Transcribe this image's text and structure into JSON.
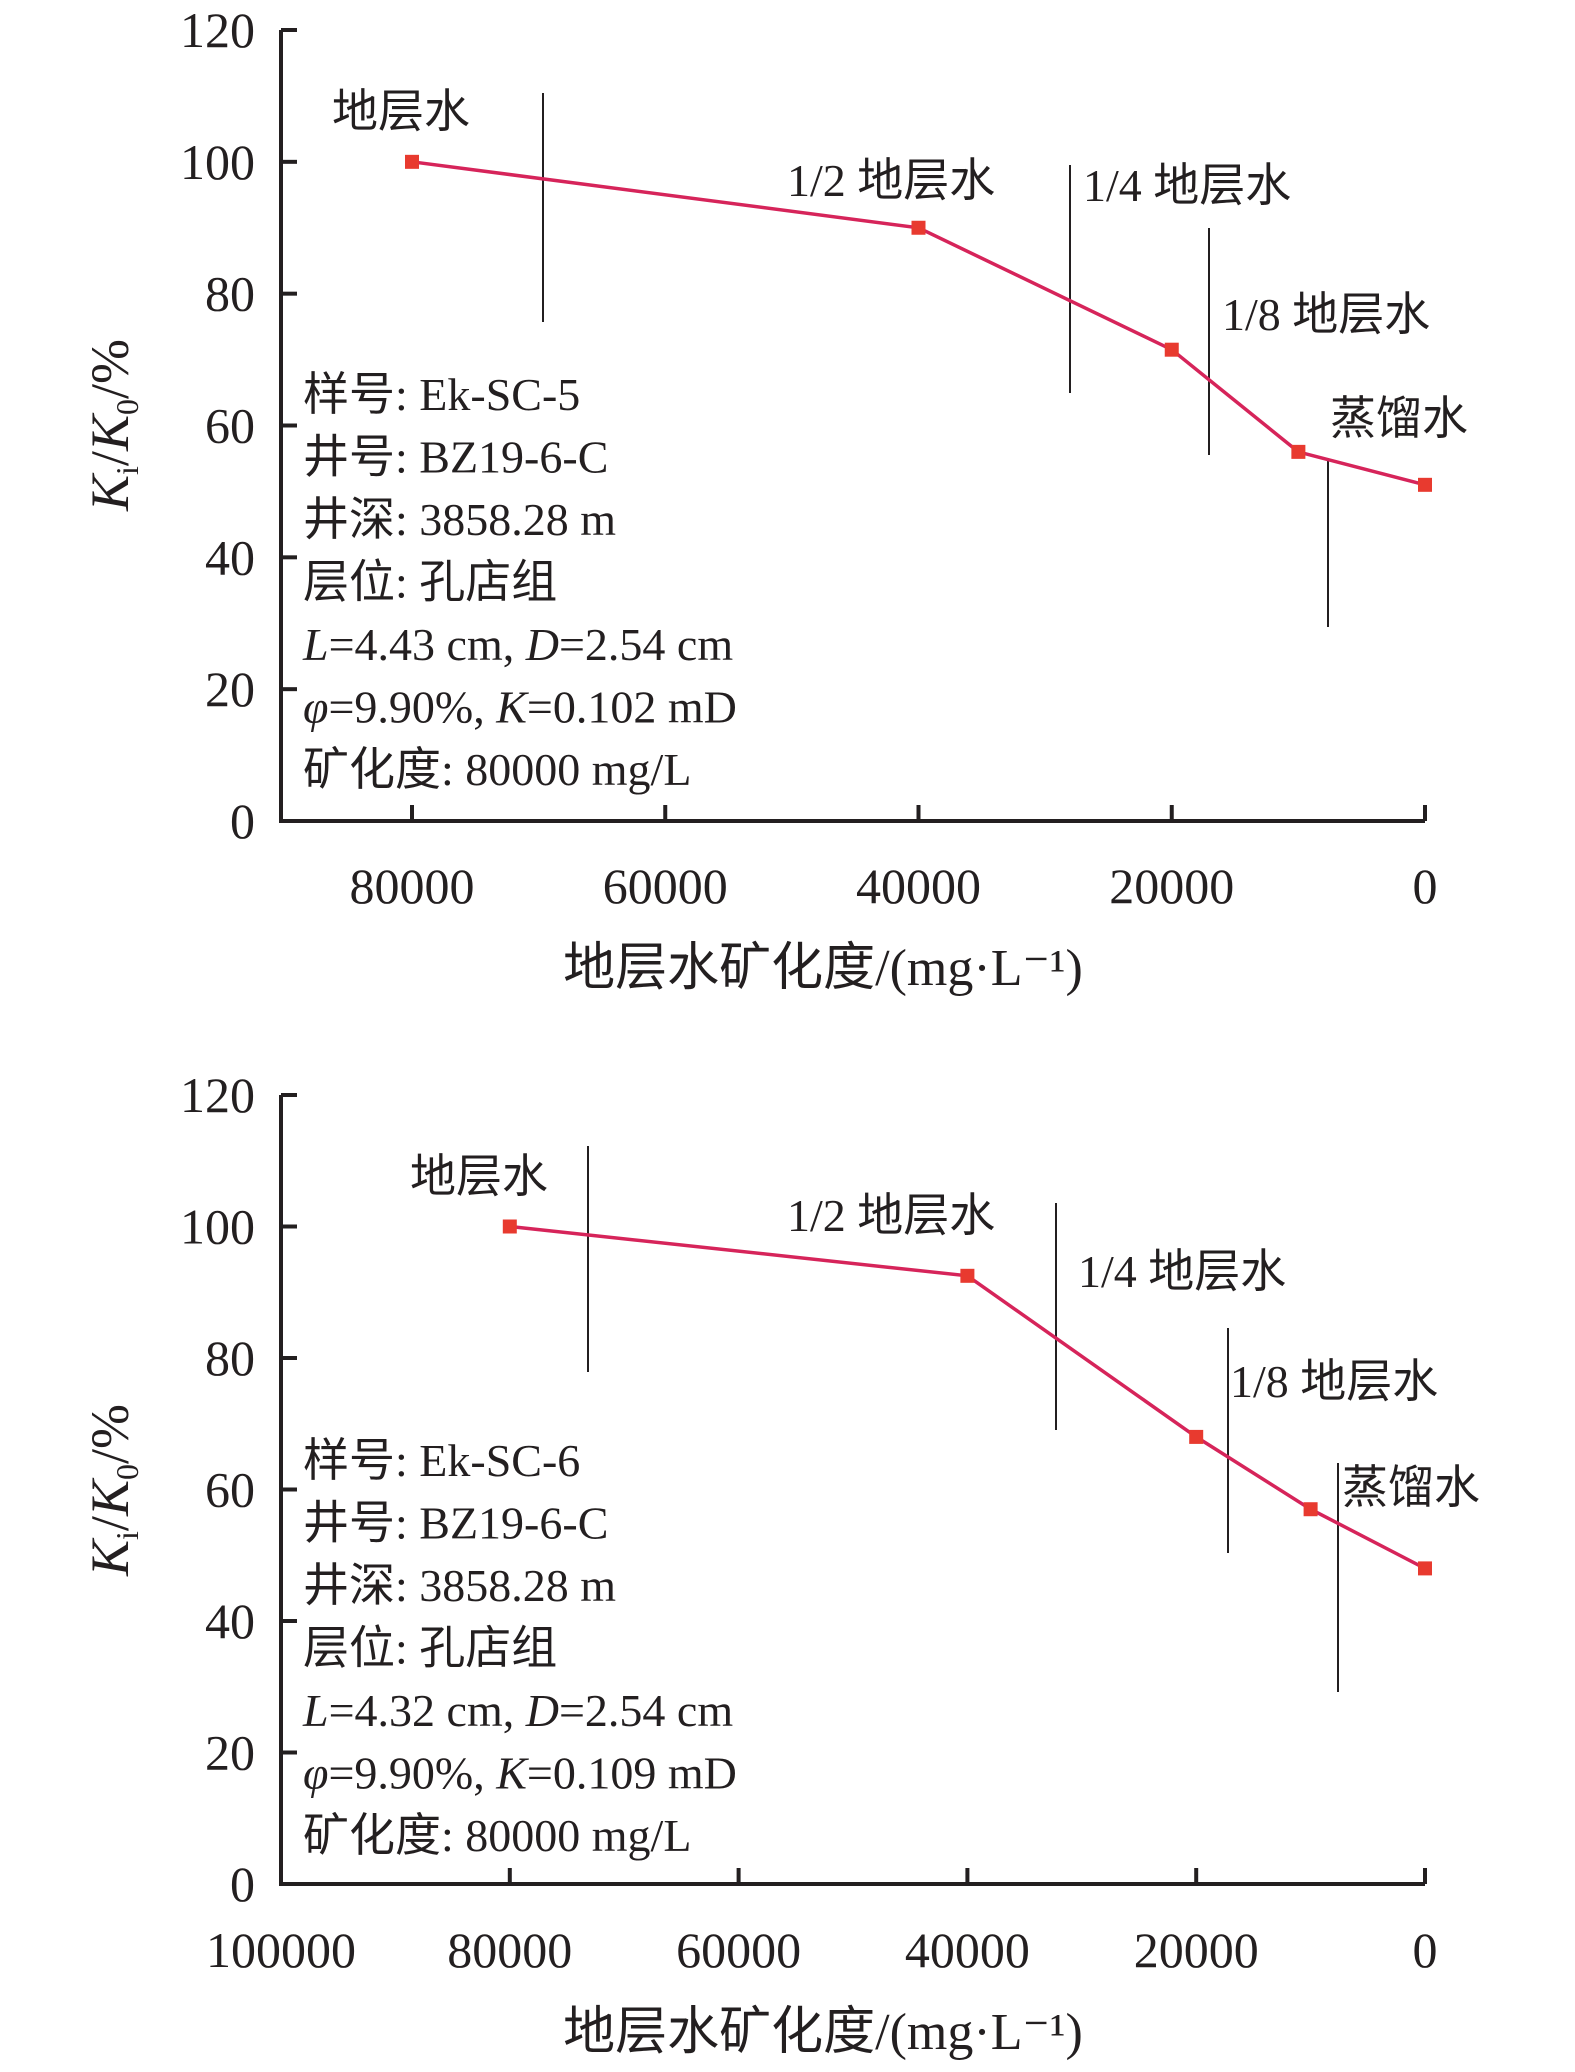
{
  "chart_data": [
    {
      "type": "line",
      "xlabel": "地层水矿化度/(mg·L⁻¹)",
      "ylabel": {
        "k1": "K",
        "sub1": "i",
        "sep": "/",
        "k2": "K",
        "sub2": "0",
        "unit": "/%"
      },
      "ylim": [
        0,
        120
      ],
      "yticks": [
        0,
        20,
        40,
        60,
        80,
        100,
        120
      ],
      "xlim": [
        90000,
        0
      ],
      "xticks": [
        80000,
        60000,
        40000,
        20000,
        0
      ],
      "x_reversed": true,
      "series_color": "#d6245a",
      "marker_color": "#e83a2f",
      "x": [
        80000,
        40000,
        20000,
        10000,
        0
      ],
      "y": [
        100,
        90,
        71.5,
        56,
        51
      ],
      "annotations": [
        "地层水",
        "1/2 地层水",
        "1/4 地层水",
        "1/8 地层水",
        "蒸馏水"
      ],
      "info": {
        "sample": "样号: Ek-SC-5",
        "well": "井号: BZ19-6-C",
        "depth": "井深: 3858.28 m",
        "formation": "层位: 孔店组",
        "dims": {
          "L_sym": "L",
          "L_val": "=4.43 cm, ",
          "D_sym": "D",
          "D_val": "=2.54 cm"
        },
        "poro": {
          "phi_sym": "φ",
          "phi_val": "=9.90%, ",
          "K_sym": "K",
          "K_val": "=0.102 mD"
        },
        "salinity": "矿化度: 80000 mg/L"
      }
    },
    {
      "type": "line",
      "xlabel": "地层水矿化度/(mg·L⁻¹)",
      "ylabel": {
        "k1": "K",
        "sub1": "i",
        "sep": "/",
        "k2": "K",
        "sub2": "0",
        "unit": "/%"
      },
      "ylim": [
        0,
        120
      ],
      "yticks": [
        0,
        20,
        40,
        60,
        80,
        100,
        120
      ],
      "xlim": [
        100000,
        0
      ],
      "xticks": [
        100000,
        80000,
        60000,
        40000,
        20000,
        0
      ],
      "x_reversed": true,
      "series_color": "#d6245a",
      "marker_color": "#e83a2f",
      "x": [
        80000,
        40000,
        20000,
        10000,
        0
      ],
      "y": [
        100,
        92.5,
        68,
        57,
        48
      ],
      "annotations": [
        "地层水",
        "1/2 地层水",
        "1/4 地层水",
        "1/8 地层水",
        "蒸馏水"
      ],
      "info": {
        "sample": "样号: Ek-SC-6",
        "well": "井号: BZ19-6-C",
        "depth": "井深: 3858.28 m",
        "formation": "层位: 孔店组",
        "dims": {
          "L_sym": "L",
          "L_val": "=4.32 cm, ",
          "D_sym": "D",
          "D_val": "=2.54 cm"
        },
        "poro": {
          "phi_sym": "φ",
          "phi_val": "=9.90%, ",
          "K_sym": "K",
          "K_val": "=0.109 mD"
        },
        "salinity": "矿化度: 80000 mg/L"
      }
    }
  ]
}
